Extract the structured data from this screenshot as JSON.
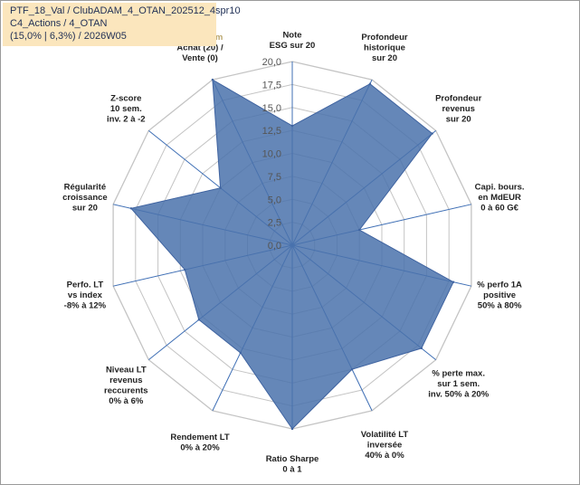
{
  "title_block": {
    "line1": "PTF_18_Val / ClubADAM_4_OTAN_202512_4spr10",
    "line2": "C4_Actions / 4_OTAN",
    "line3": "(15,0% | 6,3%) / 2026W05"
  },
  "chart_data": {
    "type": "radar",
    "title": "PTF_18_Val / ClubADAM_4_OTAN_202512_4spr10",
    "rlim": [
      0,
      20
    ],
    "tick_labels": [
      "0,0",
      "2,5",
      "5,0",
      "7,5",
      "10,0",
      "12,5",
      "15,0",
      "17,5",
      "20,0"
    ],
    "ticks": [
      0,
      2.5,
      5,
      7.5,
      10,
      12.5,
      15,
      17.5,
      20
    ],
    "grid": true,
    "series": [
      {
        "name": "PTF_18_Val",
        "color": "#4a72ab",
        "values": [
          13,
          19.5,
          19.5,
          7.5,
          18,
          18,
          15,
          20,
          13,
          13,
          12,
          18,
          10,
          20
        ]
      }
    ],
    "axes": [
      {
        "lines": [
          "Note",
          "ESG sur 20"
        ]
      },
      {
        "lines": [
          "Profondeur",
          "historique",
          "sur 20"
        ]
      },
      {
        "lines": [
          "Profondeur",
          "revenus",
          "sur 20"
        ]
      },
      {
        "lines": [
          "Capi. bours.",
          "en MdEUR",
          "0 à 60 G€"
        ]
      },
      {
        "lines": [
          "% perfo 1A",
          "positive",
          "50% à 80%"
        ]
      },
      {
        "lines": [
          "% perte max.",
          "sur 1 sem.",
          "inv. 50% à 20%"
        ]
      },
      {
        "lines": [
          "Volatilité LT",
          "inversée",
          "40% à 0%"
        ]
      },
      {
        "lines": [
          "Ratio Sharpe",
          "0 à 1"
        ]
      },
      {
        "lines": [
          "Rendement LT",
          "0% à 20%"
        ]
      },
      {
        "lines": [
          "Niveau LT",
          "revenus",
          "reccurents",
          "0% à 6%"
        ]
      },
      {
        "lines": [
          "Perfo. LT",
          "vs index",
          "-8% à 12%"
        ]
      },
      {
        "lines": [
          "Régularité",
          "croissance",
          "sur 20"
        ]
      },
      {
        "lines": [
          "Z-score",
          "10 sem.",
          "inv. 2 à -2"
        ]
      },
      {
        "lines": [
          "Momentum",
          "Achat (20) /",
          "Vente (0)"
        ],
        "first_line_color": "#b9a56b"
      }
    ]
  }
}
